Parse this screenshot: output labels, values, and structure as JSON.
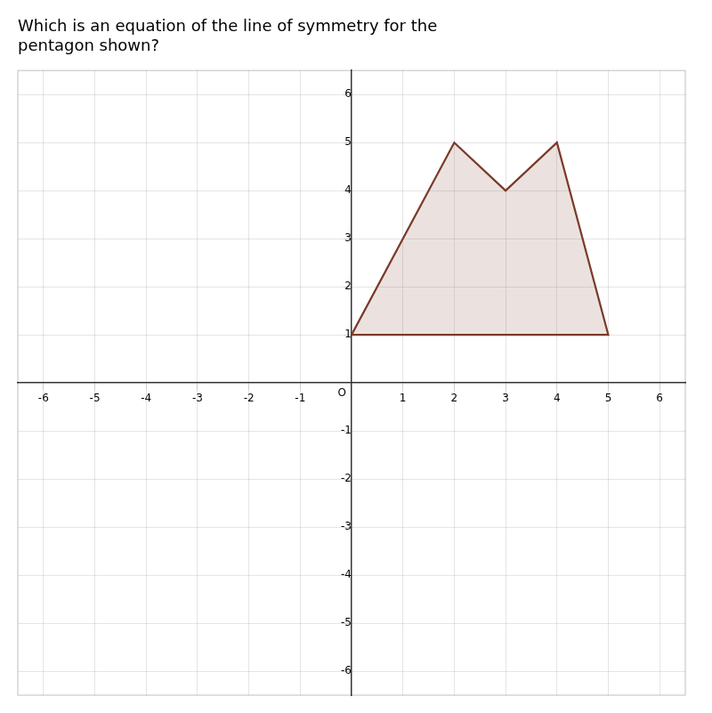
{
  "chart_data": {
    "type": "polygon",
    "title": [
      "Which is an equation of the line of symmetry for the",
      "pentagon shown?"
    ],
    "series": [
      {
        "color": "#7b3a2a",
        "x": [
          0,
          2,
          3,
          4,
          5
        ],
        "values": [
          1,
          5,
          4,
          5,
          1
        ]
      }
    ],
    "xlim": [
      -6.5,
      6.5
    ],
    "ylim": [
      -6.5,
      6.5
    ],
    "xticks": [
      -6,
      -5,
      -4,
      -3,
      -2,
      -1,
      1,
      2,
      3,
      4,
      5,
      6
    ],
    "yticks": [
      -6,
      -5,
      -4,
      -3,
      -2,
      -1,
      1,
      2,
      3,
      4,
      5,
      6
    ],
    "grid": true,
    "annotations": [
      {
        "text": "O",
        "x": 0,
        "y": 0
      }
    ]
  }
}
